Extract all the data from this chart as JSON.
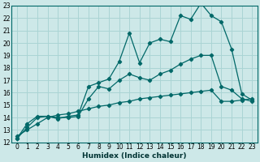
{
  "xlabel": "Humidex (Indice chaleur)",
  "bg_color": "#cde8e8",
  "grid_color": "#aad4d4",
  "line_color": "#006868",
  "xlim": [
    -0.5,
    23.5
  ],
  "ylim": [
    12,
    23
  ],
  "xticks": [
    0,
    1,
    2,
    3,
    4,
    5,
    6,
    7,
    8,
    9,
    10,
    11,
    12,
    13,
    14,
    15,
    16,
    17,
    18,
    19,
    20,
    21,
    22,
    23
  ],
  "yticks": [
    12,
    13,
    14,
    15,
    16,
    17,
    18,
    19,
    20,
    21,
    22,
    23
  ],
  "line1_x": [
    0,
    1,
    2,
    3,
    4,
    5,
    6,
    7,
    8,
    9,
    10,
    11,
    12,
    13,
    14,
    15,
    16,
    17,
    18,
    19,
    20,
    21,
    22,
    23
  ],
  "line1_y": [
    12.3,
    13.5,
    14.1,
    14.1,
    13.9,
    14.1,
    14.2,
    16.5,
    16.8,
    17.1,
    18.5,
    20.8,
    18.4,
    20.0,
    20.3,
    20.1,
    22.2,
    21.9,
    23.2,
    22.2,
    21.7,
    19.5,
    15.9,
    15.4
  ],
  "line2_x": [
    0,
    1,
    2,
    3,
    4,
    5,
    6,
    7,
    8,
    9,
    10,
    11,
    12,
    13,
    14,
    15,
    16,
    17,
    18,
    19,
    20,
    21,
    22,
    23
  ],
  "line2_y": [
    12.3,
    13.2,
    14.0,
    14.1,
    14.0,
    14.0,
    14.1,
    15.5,
    16.5,
    16.3,
    17.0,
    17.5,
    17.2,
    17.0,
    17.5,
    17.8,
    18.3,
    18.7,
    19.0,
    19.0,
    16.5,
    16.2,
    15.5,
    15.3
  ],
  "line3_x": [
    0,
    1,
    2,
    3,
    4,
    5,
    6,
    7,
    8,
    9,
    10,
    11,
    12,
    13,
    14,
    15,
    16,
    17,
    18,
    19,
    20,
    21,
    22,
    23
  ],
  "line3_y": [
    12.5,
    13.0,
    13.5,
    14.0,
    14.2,
    14.3,
    14.5,
    14.7,
    14.9,
    15.0,
    15.2,
    15.3,
    15.5,
    15.6,
    15.7,
    15.8,
    15.9,
    16.0,
    16.1,
    16.2,
    15.3,
    15.3,
    15.4,
    15.5
  ]
}
